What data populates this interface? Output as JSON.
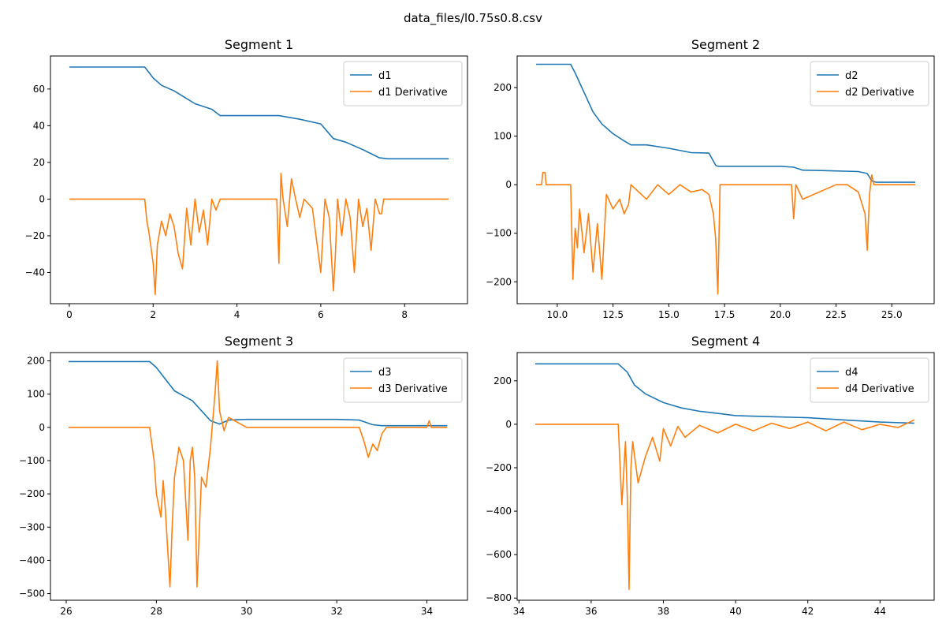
{
  "figure": {
    "suptitle": "data_files/l0.75s0.8.csv",
    "colors": {
      "series": "#1f77b4",
      "derivative": "#ff7f0e",
      "axes": "#000000"
    }
  },
  "chart_data": [
    {
      "type": "line",
      "title": "Segment 1",
      "legend_position": "top-right",
      "grid": false,
      "xlim": [
        -0.45,
        9.5
      ],
      "ylim": [
        -57,
        78
      ],
      "xticks": [
        0,
        2,
        4,
        6,
        8
      ],
      "xtick_labels": [
        "0",
        "2",
        "4",
        "6",
        "8"
      ],
      "yticks": [
        -40,
        -20,
        0,
        20,
        40,
        60
      ],
      "ytick_labels": [
        "−40",
        "−20",
        "0",
        "20",
        "40",
        "60"
      ],
      "series": [
        {
          "name": "d1",
          "x": [
            0,
            1.8,
            2.0,
            2.2,
            2.5,
            3.0,
            3.4,
            3.6,
            4.0,
            5.0,
            5.5,
            6.0,
            6.3,
            6.6,
            7.0,
            7.4,
            7.6,
            8.0,
            9.05
          ],
          "y": [
            72,
            72,
            66,
            62,
            59,
            52,
            49,
            45.5,
            45.5,
            45.5,
            43.5,
            41,
            33,
            31,
            27,
            22.5,
            22,
            22,
            22
          ]
        },
        {
          "name": "d1 Derivative",
          "x": [
            0,
            1.8,
            1.85,
            1.9,
            2.0,
            2.05,
            2.1,
            2.2,
            2.3,
            2.4,
            2.5,
            2.6,
            2.7,
            2.8,
            2.9,
            3.0,
            3.1,
            3.2,
            3.3,
            3.4,
            3.5,
            3.6,
            3.7,
            4.0,
            4.95,
            5.0,
            5.05,
            5.1,
            5.2,
            5.3,
            5.4,
            5.5,
            5.6,
            5.8,
            6.0,
            6.1,
            6.2,
            6.3,
            6.35,
            6.4,
            6.5,
            6.6,
            6.7,
            6.8,
            6.9,
            7.0,
            7.1,
            7.2,
            7.3,
            7.4,
            7.45,
            7.5,
            8.0,
            9.05
          ],
          "y": [
            0,
            0,
            -12,
            -18,
            -35,
            -52,
            -25,
            -12,
            -20,
            -8,
            -15,
            -30,
            -38,
            -5,
            -25,
            0,
            -18,
            -6,
            -25,
            0,
            -6,
            0,
            0,
            0,
            0,
            -35,
            14,
            0,
            -15,
            11,
            0,
            -10,
            0,
            -5,
            -40,
            0,
            -10,
            -50,
            -30,
            0,
            -20,
            0,
            -10,
            -40,
            0,
            -15,
            -5,
            -28,
            0,
            -8,
            -8,
            0,
            0,
            0
          ]
        }
      ]
    },
    {
      "type": "line",
      "title": "Segment 2",
      "legend_position": "top-right",
      "grid": false,
      "xlim": [
        8.2,
        26.9
      ],
      "ylim": [
        -245,
        265
      ],
      "xticks": [
        10,
        12.5,
        15,
        17.5,
        20,
        22.5,
        25
      ],
      "xtick_labels": [
        "10.0",
        "12.5",
        "15.0",
        "17.5",
        "20.0",
        "22.5",
        "25.0"
      ],
      "yticks": [
        -200,
        -100,
        0,
        100,
        200
      ],
      "ytick_labels": [
        "−200",
        "−100",
        "0",
        "100",
        "200"
      ],
      "series": [
        {
          "name": "d2",
          "x": [
            9.05,
            10.6,
            10.8,
            11.2,
            11.6,
            12.0,
            12.5,
            13.0,
            13.3,
            14.0,
            15.0,
            16.0,
            16.8,
            17.1,
            17.2,
            18.0,
            20.0,
            20.6,
            21.0,
            22.0,
            23.5,
            23.9,
            24.1,
            24.3,
            26.05
          ],
          "y": [
            248,
            248,
            230,
            190,
            150,
            125,
            105,
            90,
            82,
            82,
            75,
            66,
            65,
            40,
            38,
            38,
            38,
            36,
            30,
            29,
            27,
            23,
            8,
            5,
            5
          ]
        },
        {
          "name": "d2 Derivative",
          "x": [
            9.05,
            9.3,
            9.35,
            9.45,
            9.5,
            10.6,
            10.7,
            10.8,
            10.9,
            11.0,
            11.2,
            11.4,
            11.6,
            11.8,
            12.0,
            12.2,
            12.5,
            12.8,
            13.0,
            13.2,
            13.3,
            14.0,
            14.5,
            15.0,
            15.5,
            16.0,
            16.5,
            16.8,
            17.0,
            17.1,
            17.2,
            17.3,
            18.0,
            20.5,
            20.6,
            20.7,
            21.0,
            22.5,
            23.0,
            23.5,
            23.8,
            23.9,
            24.0,
            24.1,
            24.2,
            26.05
          ],
          "y": [
            0,
            0,
            25,
            25,
            0,
            0,
            -195,
            -90,
            -130,
            -50,
            -140,
            -60,
            -180,
            -80,
            -195,
            -20,
            -50,
            -30,
            -60,
            -40,
            0,
            -30,
            0,
            -20,
            0,
            -15,
            -10,
            -20,
            -60,
            -110,
            -225,
            0,
            0,
            0,
            -70,
            0,
            -30,
            0,
            0,
            -15,
            -60,
            -135,
            -20,
            20,
            0,
            0
          ]
        }
      ]
    },
    {
      "type": "line",
      "title": "Segment 3",
      "legend_position": "top-right",
      "grid": false,
      "xlim": [
        25.65,
        34.9
      ],
      "ylim": [
        -520,
        225
      ],
      "xticks": [
        26,
        28,
        30,
        32,
        34
      ],
      "xtick_labels": [
        "26",
        "28",
        "30",
        "32",
        "34"
      ],
      "yticks": [
        -500,
        -400,
        -300,
        -200,
        -100,
        0,
        100,
        200
      ],
      "ytick_labels": [
        "−500",
        "−400",
        "−300",
        "−200",
        "−100",
        "0",
        "100",
        "200"
      ],
      "series": [
        {
          "name": "d3",
          "x": [
            26.05,
            27.85,
            28.0,
            28.2,
            28.4,
            28.6,
            28.8,
            29.0,
            29.2,
            29.4,
            29.6,
            30.0,
            32.0,
            32.5,
            32.8,
            33.0,
            34.45
          ],
          "y": [
            198,
            198,
            180,
            145,
            110,
            95,
            80,
            50,
            20,
            10,
            22,
            24,
            24,
            22,
            8,
            5,
            5
          ]
        },
        {
          "name": "d3 Derivative",
          "x": [
            26.05,
            27.85,
            27.95,
            28.0,
            28.1,
            28.15,
            28.2,
            28.3,
            28.35,
            28.4,
            28.5,
            28.6,
            28.7,
            28.75,
            28.8,
            28.85,
            28.9,
            29.0,
            29.1,
            29.2,
            29.3,
            29.35,
            29.4,
            29.5,
            29.6,
            30.0,
            32.5,
            32.6,
            32.7,
            32.8,
            32.9,
            33.0,
            33.1,
            33.5,
            34.0,
            34.05,
            34.1,
            34.45
          ],
          "y": [
            0,
            0,
            -100,
            -200,
            -270,
            -160,
            -250,
            -480,
            -300,
            -150,
            -60,
            -100,
            -340,
            -100,
            -60,
            -150,
            -480,
            -150,
            -180,
            -60,
            100,
            200,
            50,
            -10,
            30,
            0,
            0,
            -40,
            -90,
            -50,
            -70,
            -20,
            0,
            0,
            0,
            20,
            0,
            0
          ]
        }
      ]
    },
    {
      "type": "line",
      "title": "Segment 4",
      "legend_position": "top-right",
      "grid": false,
      "xlim": [
        33.95,
        45.5
      ],
      "ylim": [
        -810,
        330
      ],
      "xticks": [
        34,
        36,
        38,
        40,
        42,
        44
      ],
      "xtick_labels": [
        "34",
        "36",
        "38",
        "40",
        "42",
        "44"
      ],
      "yticks": [
        -800,
        -600,
        -400,
        -200,
        0,
        200
      ],
      "ytick_labels": [
        "−800",
        "−600",
        "−400",
        "−200",
        "0",
        "200"
      ],
      "series": [
        {
          "name": "d4",
          "x": [
            34.45,
            36.75,
            37.0,
            37.2,
            37.5,
            38.0,
            38.5,
            39.0,
            39.5,
            40.0,
            41.0,
            42.0,
            43.0,
            44.0,
            44.95
          ],
          "y": [
            278,
            278,
            240,
            180,
            140,
            100,
            75,
            60,
            50,
            40,
            35,
            30,
            20,
            10,
            5
          ]
        },
        {
          "name": "d4 Derivative",
          "x": [
            34.45,
            36.75,
            36.85,
            36.95,
            37.0,
            37.05,
            37.1,
            37.15,
            37.3,
            37.5,
            37.7,
            37.9,
            38.0,
            38.2,
            38.4,
            38.6,
            39.0,
            39.5,
            40.0,
            40.5,
            41.0,
            41.5,
            42.0,
            42.5,
            43.0,
            43.5,
            44.0,
            44.5,
            44.95
          ],
          "y": [
            0,
            0,
            -370,
            -80,
            -330,
            -760,
            -200,
            -80,
            -270,
            -150,
            -60,
            -170,
            -20,
            -100,
            -10,
            -60,
            -5,
            -40,
            0,
            -30,
            5,
            -20,
            10,
            -30,
            10,
            -25,
            0,
            -15,
            20
          ]
        }
      ]
    }
  ]
}
